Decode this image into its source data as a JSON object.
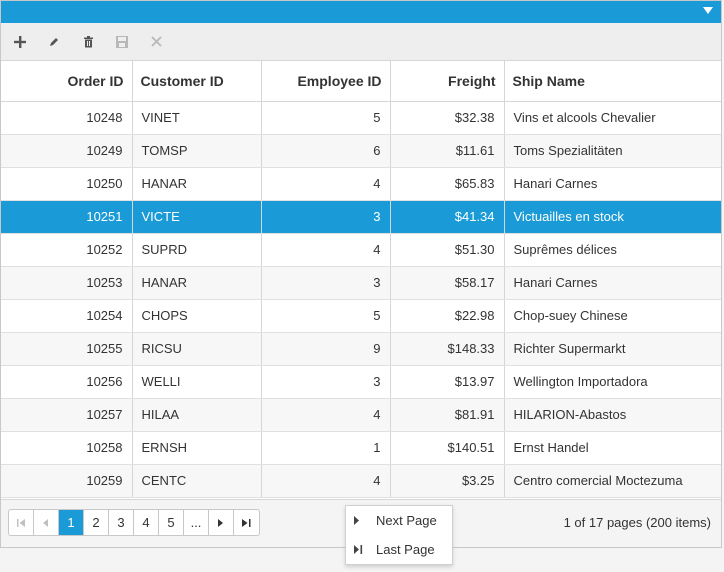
{
  "toolbar": {
    "add": "plus-icon",
    "edit": "pencil-icon",
    "delete": "trash-icon",
    "save": "save-icon",
    "cancel": "close-icon"
  },
  "columns": [
    "Order ID",
    "Customer ID",
    "Employee ID",
    "Freight",
    "Ship Name"
  ],
  "rows": [
    {
      "order_id": "10248",
      "customer_id": "VINET",
      "employee_id": "5",
      "freight": "$32.38",
      "ship_name": "Vins et alcools Chevalier"
    },
    {
      "order_id": "10249",
      "customer_id": "TOMSP",
      "employee_id": "6",
      "freight": "$11.61",
      "ship_name": "Toms Spezialitäten"
    },
    {
      "order_id": "10250",
      "customer_id": "HANAR",
      "employee_id": "4",
      "freight": "$65.83",
      "ship_name": "Hanari Carnes"
    },
    {
      "order_id": "10251",
      "customer_id": "VICTE",
      "employee_id": "3",
      "freight": "$41.34",
      "ship_name": "Victuailles en stock"
    },
    {
      "order_id": "10252",
      "customer_id": "SUPRD",
      "employee_id": "4",
      "freight": "$51.30",
      "ship_name": "Suprêmes délices"
    },
    {
      "order_id": "10253",
      "customer_id": "HANAR",
      "employee_id": "3",
      "freight": "$58.17",
      "ship_name": "Hanari Carnes"
    },
    {
      "order_id": "10254",
      "customer_id": "CHOPS",
      "employee_id": "5",
      "freight": "$22.98",
      "ship_name": "Chop-suey Chinese"
    },
    {
      "order_id": "10255",
      "customer_id": "RICSU",
      "employee_id": "9",
      "freight": "$148.33",
      "ship_name": "Richter Supermarkt"
    },
    {
      "order_id": "10256",
      "customer_id": "WELLI",
      "employee_id": "3",
      "freight": "$13.97",
      "ship_name": "Wellington Importadora"
    },
    {
      "order_id": "10257",
      "customer_id": "HILAA",
      "employee_id": "4",
      "freight": "$81.91",
      "ship_name": "HILARION-Abastos"
    },
    {
      "order_id": "10258",
      "customer_id": "ERNSH",
      "employee_id": "1",
      "freight": "$140.51",
      "ship_name": "Ernst Handel"
    },
    {
      "order_id": "10259",
      "customer_id": "CENTC",
      "employee_id": "4",
      "freight": "$3.25",
      "ship_name": "Centro comercial Moctezuma"
    }
  ],
  "selected_row": "10251",
  "pager": {
    "pages": [
      "1",
      "2",
      "3",
      "4",
      "5",
      "..."
    ],
    "current": "1",
    "info": "1 of 17 pages (200 items)"
  },
  "popup": {
    "next": "Next Page",
    "last": "Last Page"
  },
  "colors": {
    "accent": "#1a9bd7"
  }
}
